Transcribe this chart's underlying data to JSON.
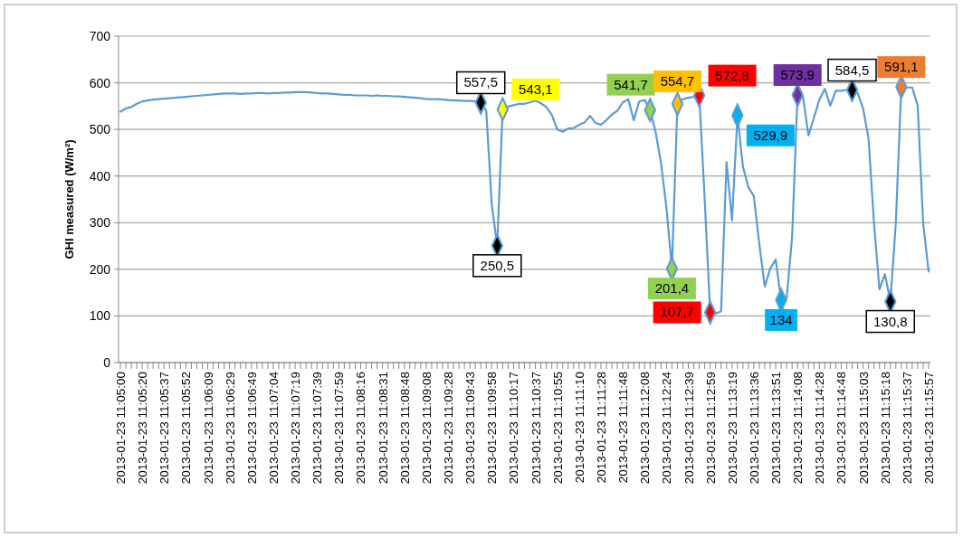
{
  "chart_data": {
    "type": "line",
    "ylabel": "GHI measured (W/m²)",
    "ylim": [
      0,
      700
    ],
    "yticks": [
      0,
      100,
      200,
      300,
      400,
      500,
      600,
      700
    ],
    "grid": "y",
    "categories": [
      "2013-01-23 11:05:00",
      null,
      null,
      null,
      "2013-01-23 11:05:20",
      null,
      null,
      null,
      "2013-01-23 11:05:37",
      null,
      null,
      null,
      "2013-01-23 11:05:52",
      null,
      null,
      null,
      "2013-01-23 11:06:09",
      null,
      null,
      null,
      "2013-01-23 11:06:29",
      null,
      null,
      null,
      "2013-01-23 11:06:49",
      null,
      null,
      null,
      "2013-01-23 11:07:04",
      null,
      null,
      null,
      "2013-01-23 11:07:19",
      null,
      null,
      null,
      "2013-01-23 11:07:39",
      null,
      null,
      null,
      "2013-01-23 11:07:59",
      null,
      null,
      null,
      "2013-01-23 11:08:16",
      null,
      null,
      null,
      "2013-01-23 11:08:31",
      null,
      null,
      null,
      "2013-01-23 11:08:48",
      null,
      null,
      null,
      "2013-01-23 11:09:08",
      null,
      null,
      null,
      "2013-01-23 11:09:28",
      null,
      null,
      null,
      "2013-01-23 11:09:43",
      null,
      null,
      null,
      "2013-01-23 11:09:58",
      null,
      null,
      null,
      "2013-01-23 11:10:17",
      null,
      null,
      null,
      "2013-01-23 11:10:37",
      null,
      null,
      null,
      "2013-01-23 11:10:55",
      null,
      null,
      null,
      "2013-01-23 11:11:10",
      null,
      null,
      null,
      "2013-01-23 11:11:28",
      null,
      null,
      null,
      "2013-01-23 11:11:48",
      null,
      null,
      null,
      "2013-01-23 11:12:08",
      null,
      null,
      null,
      "2013-01-23 11:12:24",
      null,
      null,
      null,
      "2013-01-23 11:12:39",
      null,
      null,
      null,
      "2013-01-23 11:12:59",
      null,
      null,
      null,
      "2013-01-23 11:13:19",
      null,
      null,
      null,
      "2013-01-23 11:13:36",
      null,
      null,
      null,
      "2013-01-23 11:13:51",
      null,
      null,
      null,
      "2013-01-23 11:14:08",
      null,
      null,
      null,
      "2013-01-23 11:14:28",
      null,
      null,
      null,
      "2013-01-23 11:14:48",
      null,
      null,
      null,
      "2013-01-23 11:15:03",
      null,
      null,
      null,
      "2013-01-23 11:15:18",
      null,
      null,
      null,
      "2013-01-23 11:15:37",
      null,
      null,
      null,
      "2013-01-23 11:15:57"
    ],
    "series": [
      {
        "color": "#5b9bd5",
        "values": [
          538,
          545,
          548,
          555,
          560,
          562,
          564,
          565,
          566,
          567,
          568,
          569,
          570,
          571,
          572,
          573,
          574,
          575,
          576,
          577,
          577,
          577,
          576,
          577,
          577,
          578,
          578,
          577,
          578,
          578,
          579,
          579,
          580,
          580,
          580,
          579,
          578,
          577,
          577,
          576,
          575,
          574,
          574,
          573,
          573,
          573,
          572,
          573,
          572,
          572,
          571,
          571,
          570,
          569,
          568,
          567,
          565,
          565,
          565,
          564,
          563,
          562,
          562,
          561,
          561,
          560,
          557.5,
          540,
          340,
          250.5,
          543.1,
          549,
          552,
          555,
          555,
          558,
          562,
          556,
          548,
          531,
          500,
          495,
          502,
          503,
          510,
          515,
          529,
          514,
          510,
          520,
          532,
          540,
          558,
          565,
          520,
          560,
          563,
          541.7,
          495,
          428,
          332,
          201.4,
          554.7,
          565,
          568,
          570,
          572.8,
          350,
          107.7,
          105,
          110,
          430,
          305,
          529.9,
          420,
          376,
          357,
          254,
          163,
          202,
          221,
          134,
          138,
          268,
          573.9,
          570,
          487,
          525,
          564,
          587,
          551,
          583,
          583,
          585,
          584.5,
          578,
          545,
          481,
          299,
          157,
          190,
          130.8,
          300,
          591.1,
          590,
          590,
          551,
          299,
          195
        ]
      },
      {
        "type": "scatter",
        "marker": "diamond",
        "values": [
          null,
          null,
          null,
          null,
          null,
          null,
          null,
          null,
          null,
          null,
          null,
          null,
          null,
          null,
          null,
          null,
          null,
          null,
          null,
          null,
          null,
          null,
          null,
          null,
          null,
          null,
          null,
          null,
          null,
          null,
          null,
          null,
          null,
          null,
          null,
          null,
          null,
          null,
          null,
          null,
          null,
          null,
          null,
          null,
          null,
          null,
          null,
          null,
          null,
          null,
          null,
          null,
          null,
          null,
          null,
          null,
          null,
          null,
          null,
          null,
          null,
          null,
          null,
          null,
          null,
          null,
          557.5,
          null,
          null,
          250.5,
          543.1,
          null,
          null,
          null,
          null,
          null,
          null,
          null,
          null,
          null,
          null,
          null,
          null,
          null,
          null,
          null,
          null,
          null,
          null,
          null,
          null,
          null,
          null,
          null,
          null,
          null,
          null,
          541.7,
          null,
          null,
          null,
          201.4,
          554.7,
          null,
          null,
          null,
          572.8,
          null,
          107.7,
          null,
          null,
          null,
          null,
          529.9,
          null,
          null,
          null,
          null,
          null,
          null,
          null,
          134,
          null,
          null,
          573.9,
          null,
          null,
          null,
          null,
          null,
          null,
          null,
          null,
          null,
          584.5,
          null,
          null,
          null,
          null,
          null,
          null,
          130.8,
          null,
          591.1,
          null,
          null,
          null,
          null,
          null
        ],
        "colors": [
          null,
          null,
          null,
          null,
          null,
          null,
          null,
          null,
          null,
          null,
          null,
          null,
          null,
          null,
          null,
          null,
          null,
          null,
          null,
          null,
          null,
          null,
          null,
          null,
          null,
          null,
          null,
          null,
          null,
          null,
          null,
          null,
          null,
          null,
          null,
          null,
          null,
          null,
          null,
          null,
          null,
          null,
          null,
          null,
          null,
          null,
          null,
          null,
          null,
          null,
          null,
          null,
          null,
          null,
          null,
          null,
          null,
          null,
          null,
          null,
          null,
          null,
          null,
          null,
          null,
          null,
          "#000000",
          null,
          null,
          "#000000",
          "#ffff00",
          null,
          null,
          null,
          null,
          null,
          null,
          null,
          null,
          null,
          null,
          null,
          null,
          null,
          null,
          null,
          null,
          null,
          null,
          null,
          null,
          null,
          null,
          null,
          null,
          null,
          null,
          "#92d050",
          null,
          null,
          null,
          "#92d050",
          "#ffc000",
          null,
          null,
          null,
          "#ff0000",
          null,
          "#ff0000",
          null,
          null,
          null,
          null,
          "#00b0f0",
          null,
          null,
          null,
          null,
          null,
          null,
          null,
          "#00b0f0",
          null,
          null,
          "#7030a0",
          null,
          null,
          null,
          null,
          null,
          null,
          null,
          null,
          null,
          "#000000",
          null,
          null,
          null,
          null,
          null,
          null,
          "#000000",
          null,
          "#ed7d31",
          null,
          null,
          null,
          null,
          null
        ],
        "value_labels": [
          null,
          null,
          null,
          null,
          null,
          null,
          null,
          null,
          null,
          null,
          null,
          null,
          null,
          null,
          null,
          null,
          null,
          null,
          null,
          null,
          null,
          null,
          null,
          null,
          null,
          null,
          null,
          null,
          null,
          null,
          null,
          null,
          null,
          null,
          null,
          null,
          null,
          null,
          null,
          null,
          null,
          null,
          null,
          null,
          null,
          null,
          null,
          null,
          null,
          null,
          null,
          null,
          null,
          null,
          null,
          null,
          null,
          null,
          null,
          null,
          null,
          null,
          null,
          null,
          null,
          null,
          "557,5",
          null,
          null,
          "250,5",
          "543,1",
          null,
          null,
          null,
          null,
          null,
          null,
          null,
          null,
          null,
          null,
          null,
          null,
          null,
          null,
          null,
          null,
          null,
          null,
          null,
          null,
          null,
          null,
          null,
          null,
          null,
          null,
          "541,7",
          null,
          null,
          null,
          "201,4",
          "554,7",
          null,
          null,
          null,
          "572,8",
          null,
          "107,7",
          null,
          null,
          null,
          null,
          "529,9",
          null,
          null,
          null,
          null,
          null,
          null,
          null,
          "134",
          null,
          null,
          "573,9",
          null,
          null,
          null,
          null,
          null,
          null,
          null,
          null,
          null,
          "584,5",
          null,
          null,
          null,
          null,
          null,
          null,
          "130,8",
          null,
          "591,1",
          null,
          null,
          null,
          null,
          null
        ]
      }
    ]
  }
}
